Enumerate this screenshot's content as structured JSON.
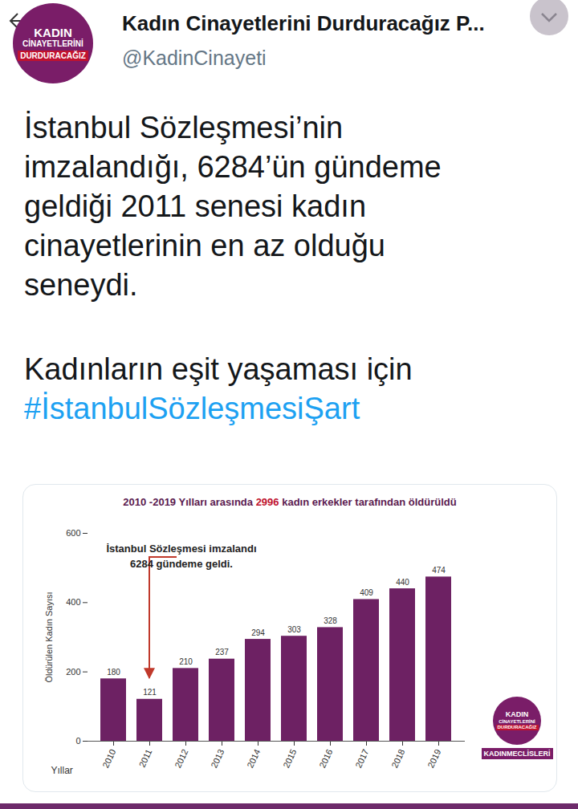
{
  "header": {
    "name": "Kadın Cinayetlerini Durduracağız P...",
    "handle": "@KadinCinayeti",
    "avatar_text": [
      "KADIN",
      "CİNAYETLERİNİ",
      "DURDURACAĞIZ"
    ]
  },
  "tweet": {
    "lines": [
      "İstanbul Sözleşmesi’nin",
      "imzalandığı, 6284’ün gündeme",
      "geldiği 2011 senesi kadın",
      "cinayetlerinin en az olduğu",
      "seneydi."
    ],
    "lines2": [
      "Kadınların eşit yaşaması için"
    ],
    "hashtag": "#İstanbulSözleşmesiŞart"
  },
  "chart_data": {
    "type": "bar",
    "title": "2010 -2019 Yılları arasında 2996 kadın erkekler tarafından öldürüldü",
    "categories": [
      "2010",
      "2011",
      "2012",
      "2013",
      "2014",
      "2015",
      "2016",
      "2017",
      "2018",
      "2019"
    ],
    "values": [
      180,
      121,
      210,
      237,
      294,
      303,
      328,
      409,
      440,
      474
    ],
    "color": "#6d2163",
    "ylim": [
      0,
      600
    ],
    "yticks": [
      0,
      200,
      400,
      600
    ],
    "ylabel": "Öldürülen Kadın Sayısı",
    "xlabel": "Yıllar",
    "data_labels": true,
    "annotations": [
      {
        "text": [
          "İstanbul Sözleşmesi imzalandı",
          "6284 gündeme geldi."
        ],
        "category": "2011"
      }
    ],
    "logo": {
      "lines": [
        "KADIN",
        "CİNAYETLERİNİ",
        "DURDURACAĞIZ"
      ],
      "caption": "KADINMECLİSLERİ"
    }
  }
}
